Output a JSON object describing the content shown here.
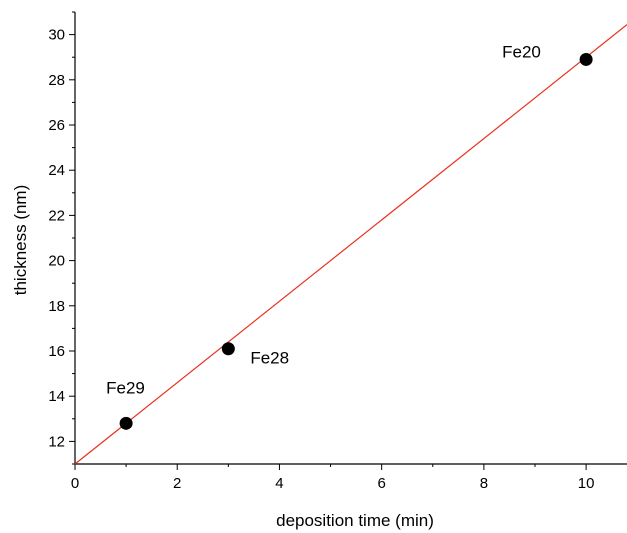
{
  "chart_data": {
    "type": "scatter",
    "title": "",
    "xlabel": "deposition time (min)",
    "ylabel": "thickness (nm)",
    "xlim": [
      0,
      10.8
    ],
    "ylim": [
      11,
      31
    ],
    "xticks": [
      0,
      2,
      4,
      6,
      8,
      10
    ],
    "yticks": [
      12,
      14,
      16,
      18,
      20,
      22,
      24,
      26,
      28,
      30
    ],
    "grid": false,
    "legend": "none",
    "series": [
      {
        "points": [
          {
            "x": 1,
            "y": 12.8,
            "label": "Fe29"
          },
          {
            "x": 3,
            "y": 16.1,
            "label": "Fe28"
          },
          {
            "x": 10,
            "y": 28.9,
            "label": "Fe20"
          }
        ],
        "color": "#000000"
      }
    ],
    "fit_line": {
      "intercept": 11.0,
      "slope": 1.8,
      "color": "#e8321e"
    }
  }
}
